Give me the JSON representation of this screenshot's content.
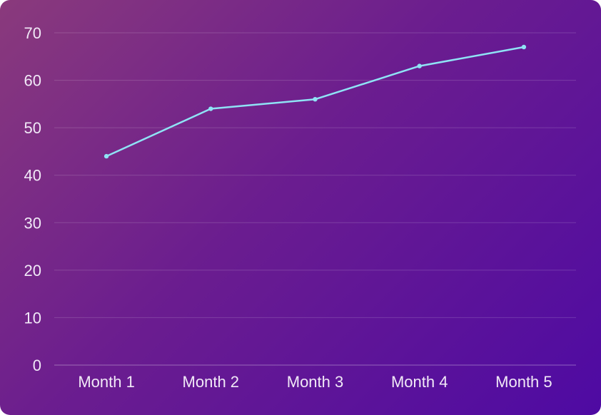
{
  "chart_data": {
    "type": "line",
    "categories": [
      "Month 1",
      "Month 2",
      "Month 3",
      "Month 4",
      "Month 5"
    ],
    "series": [
      {
        "values": [
          44,
          54,
          56,
          63,
          67
        ]
      }
    ],
    "yticks": [
      "0",
      "10",
      "20",
      "30",
      "40",
      "50",
      "60",
      "70"
    ],
    "ylim": [
      0,
      70
    ],
    "grid": true,
    "legend": "none",
    "colors": {
      "line": "#8fe3f5",
      "background_start": "#8a3a7c",
      "background_end": "#4e0aa3"
    }
  }
}
